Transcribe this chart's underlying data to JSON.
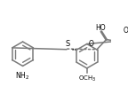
{
  "bg_color": "#ffffff",
  "line_color": "#7a7a7a",
  "text_color": "#000000",
  "lw": 1.1,
  "figsize": [
    1.44,
    1.16
  ],
  "dpi": 100,
  "xlim": [
    0,
    10
  ],
  "ylim": [
    0,
    8
  ]
}
